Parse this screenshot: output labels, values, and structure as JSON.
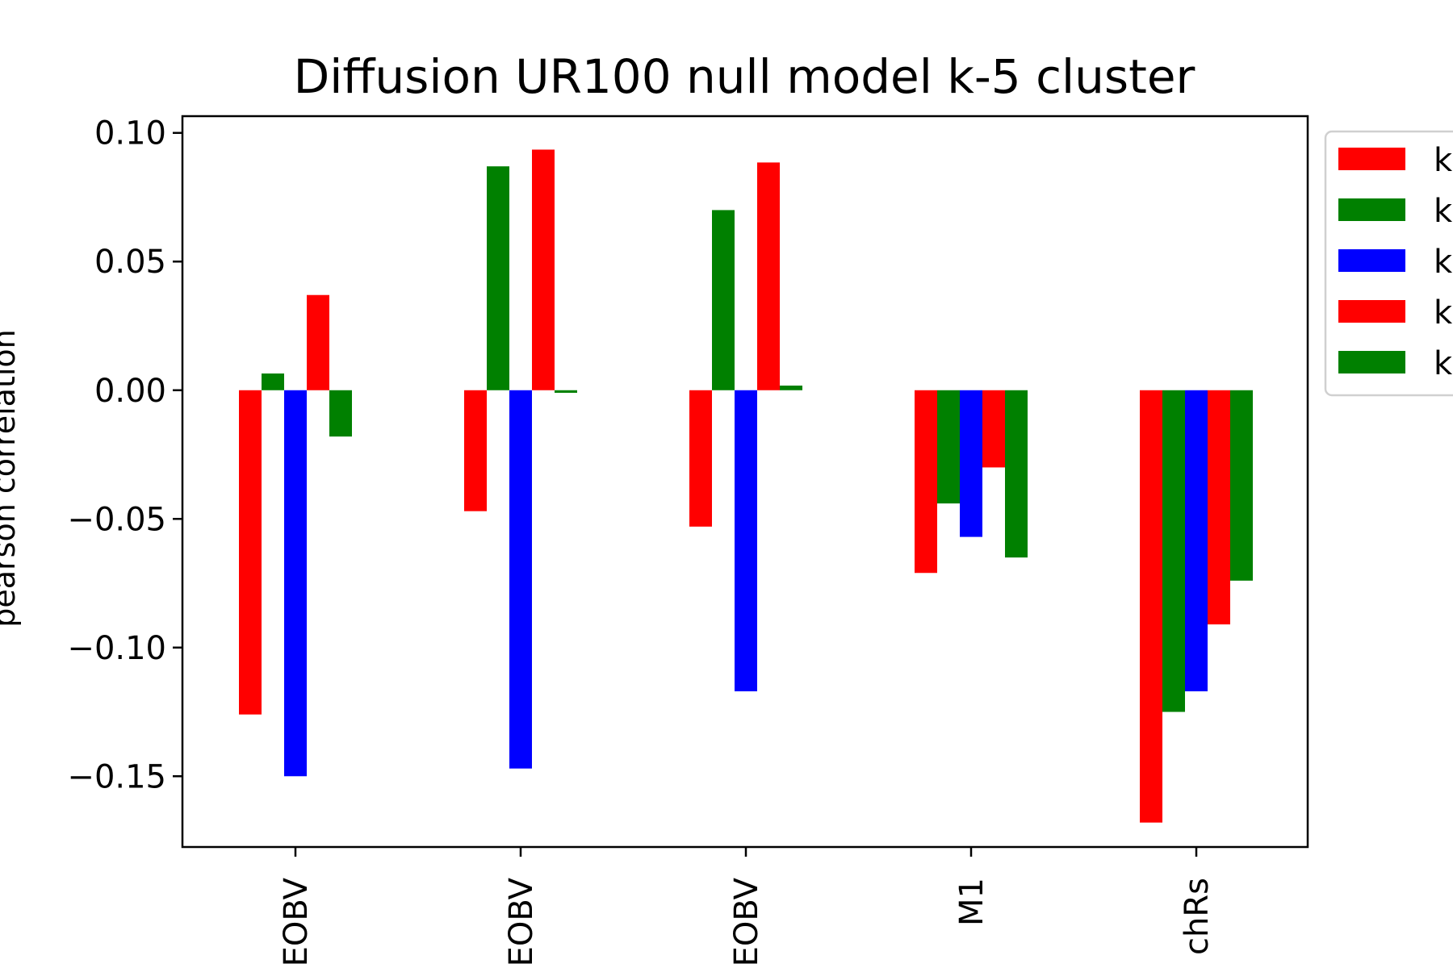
{
  "chart_data": {
    "type": "bar",
    "title": "Diffusion UR100 null model k-5 cluster",
    "ylabel": "pearson correlation",
    "xlabel": "",
    "categories": [
      "EOBV",
      "EOBV",
      "EOBV",
      "M1",
      "chRs"
    ],
    "ylim": [
      -0.1775,
      0.1065
    ],
    "yticks": [
      0.1,
      0.05,
      0.0,
      -0.05,
      -0.1,
      -0.15
    ],
    "ytick_labels": [
      "0.10",
      "0.05",
      "0.00",
      "−0.05",
      "−0.10",
      "−0.15"
    ],
    "grid": false,
    "legend_position": "right, outside plot, clipped",
    "series": [
      {
        "label": "k",
        "color": "#ff0000",
        "values": [
          -0.126,
          -0.047,
          -0.053,
          -0.071,
          -0.168
        ]
      },
      {
        "label": "k",
        "color": "#008000",
        "values": [
          0.0065,
          0.087,
          0.07,
          -0.044,
          -0.125
        ]
      },
      {
        "label": "k",
        "color": "#0000ff",
        "values": [
          -0.15,
          -0.147,
          -0.117,
          -0.057,
          -0.117
        ]
      },
      {
        "label": "k",
        "color": "#ff0000",
        "values": [
          0.037,
          0.0935,
          0.0885,
          -0.03,
          -0.091
        ]
      },
      {
        "label": "k",
        "color": "#008000",
        "values": [
          -0.018,
          -0.001,
          0.0018,
          -0.065,
          -0.074
        ]
      }
    ]
  }
}
